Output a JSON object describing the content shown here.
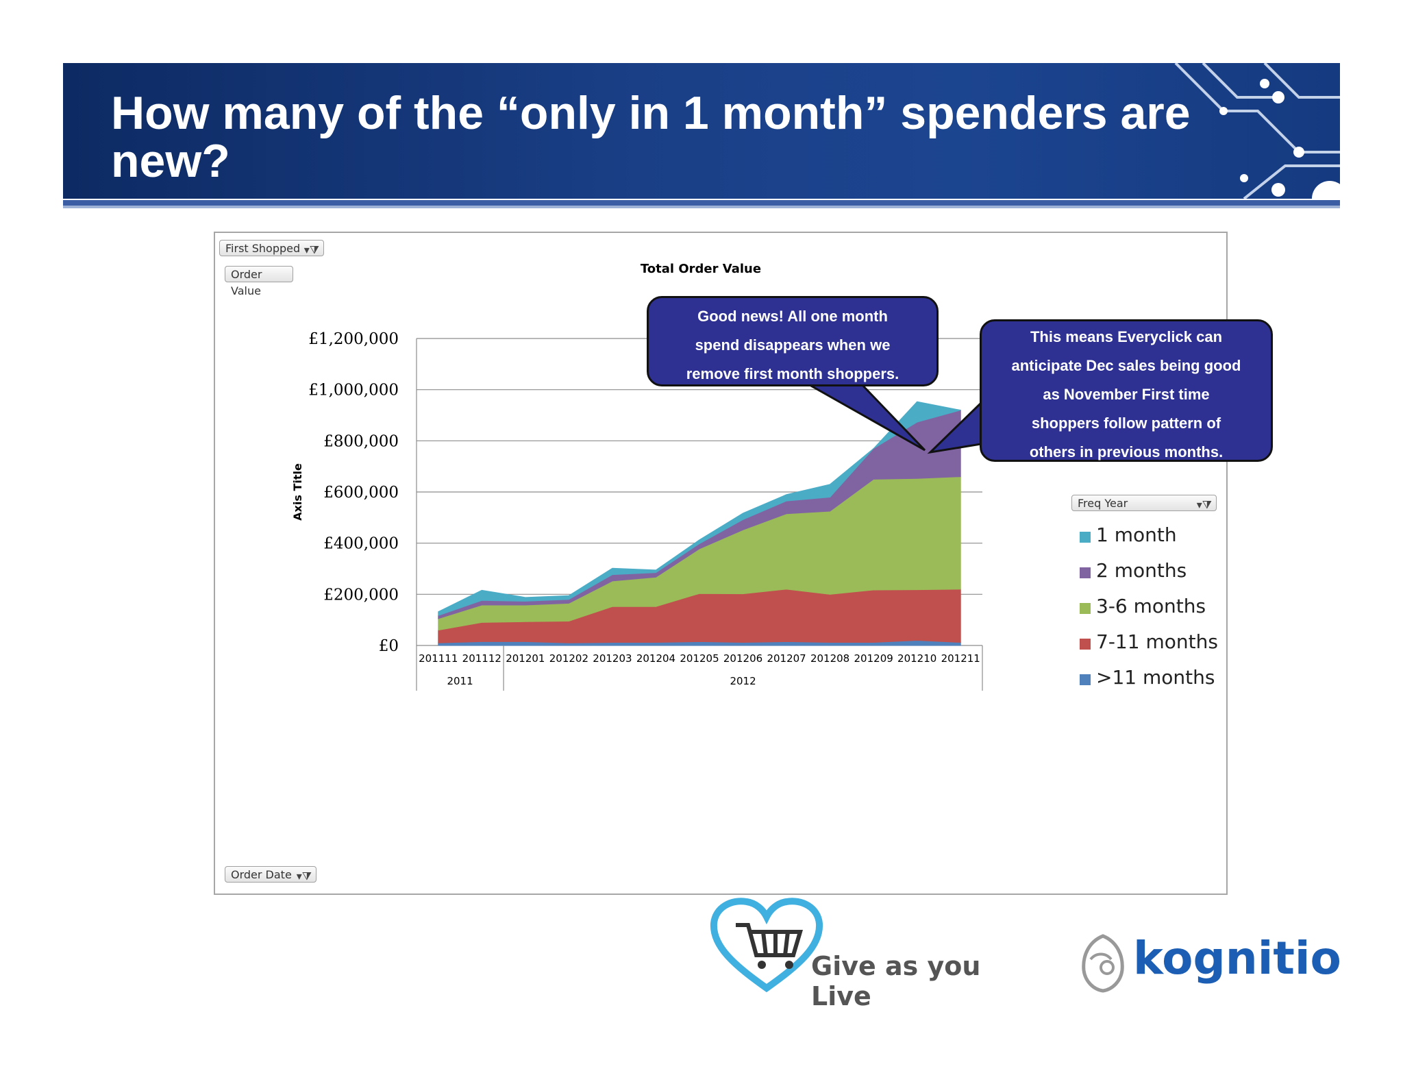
{
  "slide": {
    "title": "How many of the “only in 1 month” spenders are new?"
  },
  "pivot": {
    "filter_first_shopped": "First Shopped",
    "field_order_value": "Order Value",
    "field_order_date": "Order Date",
    "legend_field": "Freq Year",
    "filter_icon": "funnel-icon"
  },
  "callouts": {
    "left": "Good news!  All one month spend disappears when we remove first month shoppers.",
    "left_lines": [
      "Good news!  All one month",
      "spend disappears when we",
      "remove first month shoppers."
    ],
    "right_lines": [
      "This means Everyclick can",
      "anticipate Dec sales being good",
      "as November First time",
      "shoppers follow pattern of",
      "others in previous months."
    ]
  },
  "chart_data": {
    "type": "area",
    "stacked": true,
    "title": "Total Order Value",
    "ylabel": "Axis Title",
    "ylim": [
      0,
      1200000
    ],
    "yticks": [
      "£0",
      "£200,000",
      "£400,000",
      "£600,000",
      "£800,000",
      "£1,000,000",
      "£1,200,000"
    ],
    "ytick_values": [
      0,
      200000,
      400000,
      600000,
      800000,
      1000000,
      1200000
    ],
    "categories": [
      "201111",
      "201112",
      "201201",
      "201202",
      "201203",
      "201204",
      "201205",
      "201206",
      "201207",
      "201208",
      "201209",
      "201210",
      "201211"
    ],
    "year_groups": [
      {
        "label": "2011",
        "count": 2
      },
      {
        "label": "2012",
        "count": 11
      }
    ],
    "grid": true,
    "legend_position": "right",
    "series": [
      {
        "name": ">11 months",
        "color": "#4f81bd",
        "values": [
          10000,
          15000,
          15000,
          10000,
          12000,
          12000,
          15000,
          12000,
          15000,
          12000,
          12000,
          20000,
          12000
        ]
      },
      {
        "name": "7-11 months",
        "color": "#c0504d",
        "values": [
          50000,
          75000,
          78000,
          85000,
          140000,
          140000,
          188000,
          190000,
          205000,
          188000,
          205000,
          198000,
          208000
        ]
      },
      {
        "name": "3-6 months",
        "color": "#9bbb59",
        "values": [
          45000,
          68000,
          65000,
          70000,
          100000,
          115000,
          175000,
          250000,
          295000,
          325000,
          433000,
          435000,
          440000
        ]
      },
      {
        "name": "2 months",
        "color": "#8064a2",
        "values": [
          12000,
          18000,
          15000,
          15000,
          25000,
          18000,
          20000,
          40000,
          50000,
          55000,
          120000,
          220000,
          260000
        ]
      },
      {
        "name": "1 month",
        "color": "#4bacc6",
        "values": [
          15000,
          40000,
          15000,
          15000,
          25000,
          10000,
          15000,
          25000,
          25000,
          50000,
          0,
          80000,
          0
        ]
      }
    ]
  },
  "logos": {
    "giveasyoulive": "Give as you Live",
    "kognitio": "kognitio"
  },
  "colors": {
    "banner": "#153a80",
    "callout": "#2e3192"
  }
}
